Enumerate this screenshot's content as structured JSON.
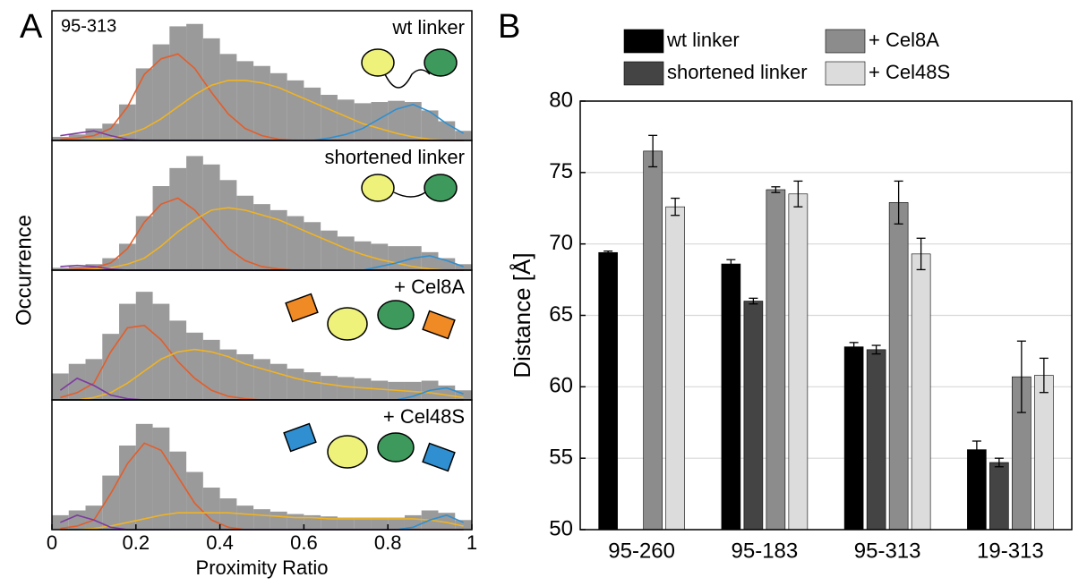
{
  "panels": [
    "A",
    "B"
  ],
  "chart_data": [
    {
      "type": "histogram",
      "annotation": "95-313",
      "label": "wt linker",
      "color": "#9a9a9a",
      "bins": [
        0,
        0.04,
        0.08,
        0.12,
        0.16,
        0.2,
        0.24,
        0.28,
        0.32,
        0.36,
        0.4,
        0.44,
        0.48,
        0.52,
        0.56,
        0.6,
        0.64,
        0.68,
        0.72,
        0.76,
        0.8,
        0.84,
        0.88,
        0.92,
        0.96,
        1
      ],
      "values": [
        3,
        5,
        10,
        14,
        30,
        60,
        80,
        95,
        97,
        85,
        72,
        66,
        62,
        56,
        50,
        44,
        38,
        34,
        31,
        32,
        33,
        32,
        25,
        16,
        8
      ],
      "series": [
        {
          "color": "#e35d2a",
          "values": [
            1,
            2,
            4,
            10,
            28,
            55,
            68,
            72,
            60,
            40,
            22,
            10,
            4,
            1,
            0,
            0,
            0,
            0,
            0,
            0,
            0,
            0,
            0,
            0,
            0
          ]
        },
        {
          "color": "#f0b323",
          "values": [
            0,
            0,
            1,
            2,
            5,
            10,
            18,
            28,
            38,
            46,
            50,
            50,
            48,
            44,
            38,
            32,
            26,
            20,
            14,
            10,
            6,
            3,
            1,
            0,
            0
          ]
        },
        {
          "color": "#2f8fd0",
          "values": [
            0,
            0,
            0,
            0,
            0,
            0,
            0,
            0,
            0,
            0,
            0,
            0,
            0,
            0,
            0,
            0,
            2,
            5,
            10,
            18,
            26,
            30,
            24,
            14,
            6
          ]
        },
        {
          "color": "#7d3aa0",
          "values": [
            4,
            6,
            8,
            4,
            1,
            0,
            0,
            0,
            0,
            0,
            0,
            0,
            0,
            0,
            0,
            0,
            0,
            0,
            0,
            0,
            0,
            0,
            0,
            0,
            0
          ]
        }
      ],
      "xlim": [
        0,
        1
      ],
      "ylim": [
        0,
        105
      ]
    },
    {
      "type": "histogram",
      "label": "shortened linker",
      "color": "#9a9a9a",
      "bins": [
        0,
        0.04,
        0.08,
        0.12,
        0.16,
        0.2,
        0.24,
        0.28,
        0.32,
        0.36,
        0.4,
        0.44,
        0.48,
        0.52,
        0.56,
        0.6,
        0.64,
        0.68,
        0.72,
        0.76,
        0.8,
        0.84,
        0.88,
        0.92,
        0.96,
        1
      ],
      "values": [
        2,
        3,
        5,
        10,
        22,
        45,
        70,
        85,
        95,
        88,
        75,
        62,
        55,
        50,
        45,
        40,
        33,
        28,
        24,
        22,
        20,
        20,
        15,
        10,
        5
      ],
      "series": [
        {
          "color": "#e35d2a",
          "values": [
            0,
            1,
            2,
            6,
            18,
            40,
            55,
            60,
            50,
            34,
            18,
            8,
            3,
            1,
            0,
            0,
            0,
            0,
            0,
            0,
            0,
            0,
            0,
            0,
            0
          ]
        },
        {
          "color": "#f0b323",
          "values": [
            0,
            0,
            1,
            2,
            5,
            10,
            20,
            32,
            42,
            50,
            52,
            50,
            46,
            42,
            36,
            30,
            24,
            18,
            13,
            9,
            6,
            3,
            1,
            0,
            0
          ]
        },
        {
          "color": "#2f8fd0",
          "values": [
            0,
            0,
            0,
            0,
            0,
            0,
            0,
            0,
            0,
            0,
            0,
            0,
            0,
            0,
            0,
            0,
            0,
            0,
            0,
            3,
            6,
            10,
            12,
            8,
            3
          ]
        },
        {
          "color": "#7d3aa0",
          "values": [
            3,
            4,
            3,
            1,
            0,
            0,
            0,
            0,
            0,
            0,
            0,
            0,
            0,
            0,
            0,
            0,
            0,
            0,
            0,
            0,
            0,
            0,
            0,
            0,
            0
          ]
        }
      ],
      "xlim": [
        0,
        1
      ],
      "ylim": [
        0,
        105
      ]
    },
    {
      "type": "histogram",
      "label": "+ Cel8A",
      "color": "#9a9a9a",
      "bins": [
        0,
        0.04,
        0.08,
        0.12,
        0.16,
        0.2,
        0.24,
        0.28,
        0.32,
        0.36,
        0.4,
        0.44,
        0.48,
        0.52,
        0.56,
        0.6,
        0.64,
        0.68,
        0.72,
        0.76,
        0.8,
        0.84,
        0.88,
        0.92,
        0.96,
        1
      ],
      "values": [
        22,
        30,
        34,
        55,
        80,
        90,
        80,
        66,
        56,
        50,
        42,
        38,
        34,
        30,
        26,
        23,
        20,
        19,
        18,
        16,
        15,
        15,
        16,
        12,
        8
      ],
      "series": [
        {
          "color": "#e35d2a",
          "values": [
            2,
            6,
            14,
            40,
            60,
            62,
            50,
            32,
            18,
            8,
            3,
            1,
            0,
            0,
            0,
            0,
            0,
            0,
            0,
            0,
            0,
            0,
            0,
            0,
            0
          ]
        },
        {
          "color": "#f0b323",
          "values": [
            0,
            0,
            2,
            6,
            14,
            24,
            34,
            40,
            42,
            40,
            36,
            30,
            26,
            22,
            18,
            15,
            13,
            11,
            10,
            9,
            8,
            7,
            6,
            4,
            2
          ]
        },
        {
          "color": "#2f8fd0",
          "values": [
            0,
            0,
            0,
            0,
            0,
            0,
            0,
            0,
            0,
            0,
            0,
            0,
            0,
            0,
            0,
            0,
            0,
            0,
            0,
            0,
            0,
            3,
            8,
            10,
            5
          ]
        },
        {
          "color": "#7d3aa0",
          "values": [
            8,
            18,
            12,
            4,
            1,
            0,
            0,
            0,
            0,
            0,
            0,
            0,
            0,
            0,
            0,
            0,
            0,
            0,
            0,
            0,
            0,
            0,
            0,
            0,
            0
          ]
        }
      ],
      "xlim": [
        0,
        1
      ],
      "ylim": [
        0,
        105
      ]
    },
    {
      "type": "histogram",
      "label": "+ Cel48S",
      "color": "#9a9a9a",
      "bins": [
        0,
        0.04,
        0.08,
        0.12,
        0.16,
        0.2,
        0.24,
        0.28,
        0.32,
        0.36,
        0.4,
        0.44,
        0.48,
        0.52,
        0.56,
        0.6,
        0.64,
        0.68,
        0.72,
        0.76,
        0.8,
        0.84,
        0.88,
        0.92,
        0.96,
        1
      ],
      "values": [
        12,
        16,
        20,
        45,
        70,
        88,
        85,
        65,
        48,
        35,
        26,
        20,
        17,
        15,
        13,
        12,
        11,
        10,
        10,
        10,
        10,
        12,
        16,
        14,
        8
      ],
      "series": [
        {
          "color": "#e35d2a",
          "values": [
            1,
            3,
            8,
            30,
            55,
            72,
            66,
            44,
            22,
            8,
            2,
            0,
            0,
            0,
            0,
            0,
            0,
            0,
            0,
            0,
            0,
            0,
            0,
            0,
            0
          ]
        },
        {
          "color": "#f0b323",
          "values": [
            0,
            0,
            1,
            3,
            6,
            9,
            12,
            14,
            14,
            14,
            14,
            13,
            12,
            11,
            10,
            10,
            9,
            9,
            9,
            9,
            9,
            9,
            8,
            6,
            3
          ]
        },
        {
          "color": "#2f8fd0",
          "values": [
            0,
            0,
            0,
            0,
            0,
            0,
            0,
            0,
            0,
            0,
            0,
            0,
            0,
            0,
            0,
            0,
            0,
            0,
            0,
            0,
            0,
            2,
            8,
            12,
            6
          ]
        },
        {
          "color": "#7d3aa0",
          "values": [
            6,
            12,
            8,
            2,
            0,
            0,
            0,
            0,
            0,
            0,
            0,
            0,
            0,
            0,
            0,
            0,
            0,
            0,
            0,
            0,
            0,
            0,
            0,
            0,
            0
          ]
        }
      ],
      "xlim": [
        0,
        1
      ],
      "ylim": [
        0,
        105
      ],
      "xticks": [
        0,
        0.2,
        0.4,
        0.6,
        0.8,
        1
      ],
      "xlabel": "Proximity Ratio",
      "ylabel": "Occurrence"
    },
    {
      "type": "bar",
      "ylabel": "Distance [Å]",
      "categories": [
        "95-260",
        "95-183",
        "95-313",
        "19-313"
      ],
      "series": [
        {
          "name": "wt linker",
          "color": "#000000",
          "values": [
            69.4,
            68.6,
            62.8,
            55.6
          ],
          "errors": [
            0.1,
            0.3,
            0.3,
            0.6
          ]
        },
        {
          "name": "shortened linker",
          "color": "#444444",
          "values": [
            null,
            66.0,
            62.6,
            54.7
          ],
          "errors": [
            null,
            0.2,
            0.3,
            0.3
          ]
        },
        {
          "name": "+ Cel8A",
          "color": "#8c8c8c",
          "values": [
            76.5,
            73.8,
            72.9,
            60.7
          ],
          "errors": [
            1.1,
            0.2,
            1.5,
            2.5
          ]
        },
        {
          "name": "+ Cel48S",
          "color": "#dcdcdc",
          "values": [
            72.6,
            73.5,
            69.3,
            60.8
          ],
          "errors": [
            0.6,
            0.9,
            1.1,
            1.2
          ]
        }
      ],
      "ylim": [
        50,
        80
      ],
      "yticks": [
        50,
        55,
        60,
        65,
        70,
        75,
        80
      ],
      "grid": true
    }
  ]
}
